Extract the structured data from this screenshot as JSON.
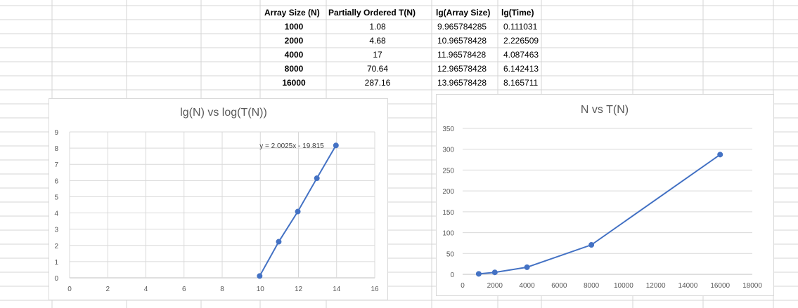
{
  "sheet": {
    "headers": [
      "Array Size (N)",
      "Partially Ordered T(N)",
      "lg(Array Size)",
      "lg(Time)"
    ],
    "rows": [
      [
        "1000",
        "1.08",
        "9.965784285",
        "0.111031"
      ],
      [
        "2000",
        "4.68",
        "10.96578428",
        "2.226509"
      ],
      [
        "4000",
        "17",
        "11.96578428",
        "4.087463"
      ],
      [
        "8000",
        "70.64",
        "12.96578428",
        "6.142413"
      ],
      [
        "16000",
        "287.16",
        "13.96578428",
        "8.165711"
      ]
    ]
  },
  "colors": {
    "series": "#4472c4",
    "gridline": "#d9d9d9",
    "axis_text": "#595959",
    "cell_border": "#d4d4d4"
  },
  "chart_data": [
    {
      "type": "scatter",
      "title": "lg(N) vs log(T(N))",
      "x": [
        9.965784285,
        10.96578428,
        11.96578428,
        12.96578428,
        13.96578428
      ],
      "y": [
        0.111031,
        2.226509,
        4.087463,
        6.142413,
        8.165711
      ],
      "xlim": [
        0,
        16
      ],
      "ylim": [
        0,
        9
      ],
      "xticks": [
        "0",
        "2",
        "4",
        "6",
        "8",
        "10",
        "12",
        "14",
        "16"
      ],
      "yticks": [
        "0",
        "1",
        "2",
        "3",
        "4",
        "5",
        "6",
        "7",
        "8",
        "9"
      ],
      "grid": true,
      "lines": true,
      "trendline_label": "y = 2.0025x - 19.815"
    },
    {
      "type": "scatter",
      "title": "N vs T(N)",
      "x": [
        1000,
        2000,
        4000,
        8000,
        16000
      ],
      "y": [
        1.08,
        4.68,
        17,
        70.64,
        287.16
      ],
      "xlim": [
        0,
        18000
      ],
      "ylim": [
        0,
        350
      ],
      "xticks": [
        "0",
        "2000",
        "4000",
        "6000",
        "8000",
        "10000",
        "12000",
        "14000",
        "16000",
        "18000"
      ],
      "yticks": [
        "0",
        "50",
        "100",
        "150",
        "200",
        "250",
        "300",
        "350"
      ],
      "grid": true,
      "lines": true
    }
  ]
}
